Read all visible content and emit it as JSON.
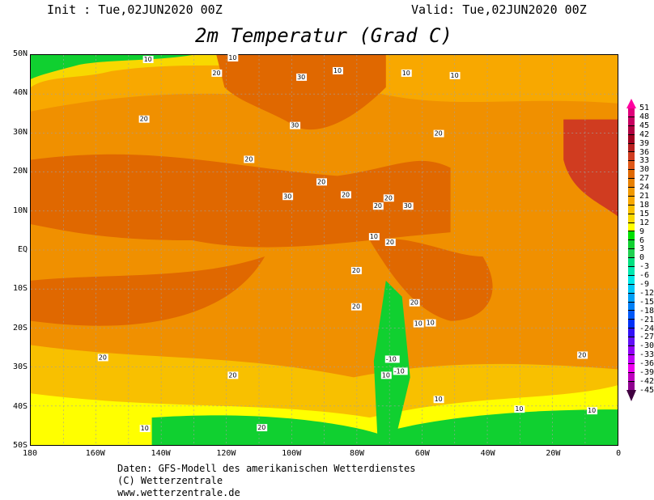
{
  "header": {
    "init": "Init : Tue,02JUN2020 00Z",
    "valid": "Valid: Tue,02JUN2020 00Z",
    "title": "2m Temperatur (Grad C)"
  },
  "axes": {
    "lat": [
      "50N",
      "40N",
      "30N",
      "20N",
      "10N",
      "EQ",
      "10S",
      "20S",
      "30S",
      "40S",
      "50S"
    ],
    "lon": [
      "180",
      "160W",
      "140W",
      "120W",
      "100W",
      "80W",
      "60W",
      "40W",
      "20W",
      "0"
    ]
  },
  "footer": [
    "Daten: GFS-Modell des amerikanischen Wetterdienstes",
    "(C) Wetterzentrale",
    "www.wetterzentrale.de"
  ],
  "colorbar": {
    "labels": [
      "51",
      "48",
      "45",
      "42",
      "39",
      "36",
      "33",
      "30",
      "27",
      "24",
      "21",
      "18",
      "15",
      "12",
      "9",
      "6",
      "3",
      "0",
      "-3",
      "-6",
      "-9",
      "-12",
      "-15",
      "-18",
      "-21",
      "-24",
      "-27",
      "-30",
      "-33",
      "-36",
      "-39",
      "-42",
      "-45"
    ],
    "colors": [
      "#ff00a0",
      "#e0007a",
      "#c80060",
      "#b00040",
      "#a00020",
      "#b82020",
      "#d03c20",
      "#e05818",
      "#e06800",
      "#e88000",
      "#f09800",
      "#f8a800",
      "#f8c000",
      "#f8d800",
      "#ffff00",
      "#00e000",
      "#10d030",
      "#20d050",
      "#00e080",
      "#00e8b0",
      "#00e8e8",
      "#00c8f8",
      "#00a0f8",
      "#0080f8",
      "#0058f8",
      "#0030f8",
      "#3010f8",
      "#6010f8",
      "#9000f8",
      "#c000f8",
      "#f000f0",
      "#c000c0",
      "#900090",
      "#600060"
    ]
  },
  "contour_labels": [
    "10",
    "10",
    "10",
    "20",
    "20",
    "30",
    "30",
    "20",
    "20",
    "20",
    "20",
    "20",
    "20",
    "20",
    "10",
    "10",
    "20",
    "20",
    "30",
    "20",
    "30",
    "20",
    "10",
    "10",
    "10",
    "10",
    "-10",
    "-10",
    "10",
    "10",
    "10",
    "20",
    "20",
    "10",
    "20"
  ],
  "map_colors": {
    "base": "#f09000",
    "warm": "#e06800",
    "mild": "#f8a800",
    "cool": "#f8c000",
    "cold": "#ffff00",
    "green": "#10d030",
    "grid": "#a0a0a0"
  }
}
